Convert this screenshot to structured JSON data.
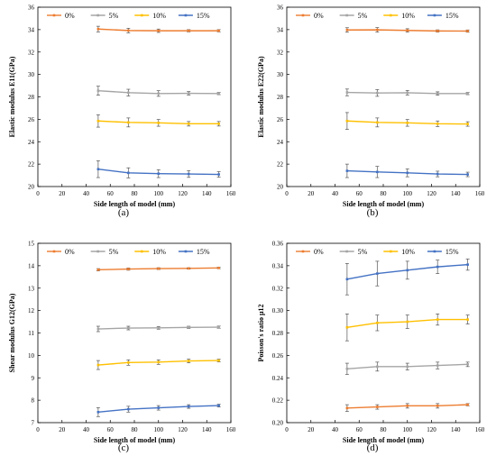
{
  "colors": {
    "0%": "#ed7d31",
    "5%": "#a5a5a5",
    "10%": "#ffc000",
    "15%": "#4472c4"
  },
  "chart_data": [
    {
      "type": "line",
      "caption": "(a)",
      "xlabel": "Side length of model (mm)",
      "ylabel": "Elastic modulus E11(GPa)",
      "xlim": [
        0,
        160
      ],
      "xticks": [
        0,
        20,
        40,
        60,
        80,
        100,
        120,
        140,
        160
      ],
      "ylim": [
        20,
        36
      ],
      "yticks": [
        20,
        22,
        24,
        26,
        28,
        30,
        32,
        34,
        36
      ],
      "yfmt": 0,
      "x": [
        50,
        75,
        100,
        125,
        150
      ],
      "legend_position": "top",
      "series": [
        {
          "name": "0%",
          "values": [
            34.05,
            33.92,
            33.9,
            33.9,
            33.9
          ],
          "errors": [
            0.25,
            0.2,
            0.15,
            0.1,
            0.1
          ]
        },
        {
          "name": "5%",
          "values": [
            28.55,
            28.38,
            28.3,
            28.32,
            28.3
          ],
          "errors": [
            0.4,
            0.3,
            0.25,
            0.15,
            0.1
          ]
        },
        {
          "name": "10%",
          "values": [
            25.85,
            25.72,
            25.68,
            25.6,
            25.6
          ],
          "errors": [
            0.55,
            0.4,
            0.3,
            0.2,
            0.2
          ]
        },
        {
          "name": "15%",
          "values": [
            21.55,
            21.22,
            21.15,
            21.12,
            21.08
          ],
          "errors": [
            0.75,
            0.45,
            0.35,
            0.3,
            0.25
          ]
        }
      ]
    },
    {
      "type": "line",
      "caption": "(b)",
      "xlabel": "Side length of model (mm)",
      "ylabel": "Elastic modulus E22(GPa)",
      "xlim": [
        0,
        160
      ],
      "xticks": [
        0,
        20,
        40,
        60,
        80,
        100,
        120,
        140,
        160
      ],
      "ylim": [
        20,
        36
      ],
      "yticks": [
        20,
        22,
        24,
        26,
        28,
        30,
        32,
        34,
        36
      ],
      "yfmt": 0,
      "x": [
        50,
        75,
        100,
        125,
        150
      ],
      "legend_position": "top",
      "series": [
        {
          "name": "0%",
          "values": [
            33.97,
            33.98,
            33.93,
            33.88,
            33.87
          ],
          "errors": [
            0.2,
            0.2,
            0.15,
            0.1,
            0.1
          ]
        },
        {
          "name": "5%",
          "values": [
            28.4,
            28.35,
            28.37,
            28.3,
            28.3
          ],
          "errors": [
            0.3,
            0.3,
            0.2,
            0.15,
            0.1
          ]
        },
        {
          "name": "10%",
          "values": [
            25.85,
            25.72,
            25.68,
            25.6,
            25.58
          ],
          "errors": [
            0.75,
            0.4,
            0.3,
            0.25,
            0.2
          ]
        },
        {
          "name": "15%",
          "values": [
            21.4,
            21.3,
            21.22,
            21.12,
            21.08
          ],
          "errors": [
            0.6,
            0.5,
            0.35,
            0.25,
            0.2
          ]
        }
      ]
    },
    {
      "type": "line",
      "caption": "(c)",
      "xlabel": "Side length of model (mm)",
      "ylabel": "Shear modulus G12(GPa)",
      "xlim": [
        0,
        160
      ],
      "xticks": [
        0,
        20,
        40,
        60,
        80,
        100,
        120,
        140,
        160
      ],
      "ylim": [
        7,
        15
      ],
      "yticks": [
        7,
        8,
        9,
        10,
        11,
        12,
        13,
        14,
        15
      ],
      "yfmt": 0,
      "x": [
        50,
        75,
        100,
        125,
        150
      ],
      "legend_position": "top",
      "series": [
        {
          "name": "0%",
          "values": [
            13.82,
            13.85,
            13.87,
            13.88,
            13.9
          ],
          "errors": [
            0.05,
            0.05,
            0.04,
            0.03,
            0.03
          ]
        },
        {
          "name": "5%",
          "values": [
            11.18,
            11.22,
            11.23,
            11.25,
            11.26
          ],
          "errors": [
            0.12,
            0.08,
            0.06,
            0.05,
            0.05
          ]
        },
        {
          "name": "10%",
          "values": [
            9.57,
            9.68,
            9.7,
            9.75,
            9.77
          ],
          "errors": [
            0.2,
            0.12,
            0.1,
            0.08,
            0.06
          ]
        },
        {
          "name": "15%",
          "values": [
            7.47,
            7.6,
            7.66,
            7.72,
            7.76
          ],
          "errors": [
            0.2,
            0.13,
            0.1,
            0.08,
            0.06
          ]
        }
      ]
    },
    {
      "type": "line",
      "caption": "(d)",
      "xlabel": "Side length of model (mm)",
      "ylabel": "Poisson's ratio μ12",
      "xlim": [
        0,
        160
      ],
      "xticks": [
        0,
        20,
        40,
        60,
        80,
        100,
        120,
        140,
        160
      ],
      "ylim": [
        0.2,
        0.36
      ],
      "yticks": [
        0.2,
        0.22,
        0.24,
        0.26,
        0.28,
        0.3,
        0.32,
        0.34,
        0.36
      ],
      "yfmt": 2,
      "x": [
        50,
        75,
        100,
        125,
        150
      ],
      "legend_position": "top",
      "series": [
        {
          "name": "0%",
          "values": [
            0.213,
            0.214,
            0.215,
            0.215,
            0.216
          ],
          "errors": [
            0.003,
            0.002,
            0.002,
            0.002,
            0.001
          ]
        },
        {
          "name": "5%",
          "values": [
            0.248,
            0.25,
            0.25,
            0.251,
            0.252
          ],
          "errors": [
            0.005,
            0.004,
            0.003,
            0.003,
            0.002
          ]
        },
        {
          "name": "10%",
          "values": [
            0.285,
            0.289,
            0.29,
            0.292,
            0.292
          ],
          "errors": [
            0.012,
            0.007,
            0.006,
            0.005,
            0.004
          ]
        },
        {
          "name": "15%",
          "values": [
            0.328,
            0.333,
            0.336,
            0.339,
            0.341
          ],
          "errors": [
            0.014,
            0.011,
            0.008,
            0.006,
            0.005
          ]
        }
      ]
    }
  ]
}
